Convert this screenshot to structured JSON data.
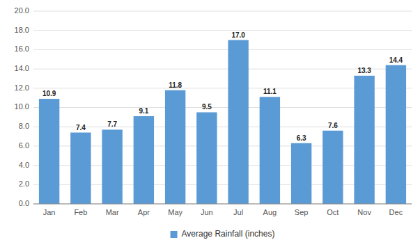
{
  "chart_data": {
    "type": "bar",
    "categories": [
      "Jan",
      "Feb",
      "Mar",
      "Apr",
      "May",
      "Jun",
      "Jul",
      "Aug",
      "Sep",
      "Oct",
      "Nov",
      "Dec"
    ],
    "series": [
      {
        "name": "Average Rainfall (inches)",
        "color": "#5b9bd5",
        "values": [
          10.9,
          7.4,
          7.7,
          9.1,
          11.8,
          9.5,
          17.0,
          11.1,
          6.3,
          7.6,
          13.3,
          14.4
        ],
        "value_labels": [
          "10.9",
          "7.4",
          "7.7",
          "9.1",
          "11.8",
          "9.5",
          "17.0",
          "11.1",
          "6.3",
          "7.6",
          "13.3",
          "14.4"
        ]
      }
    ],
    "ylim": [
      0,
      20.0
    ],
    "yticks": [
      {
        "value": 0.0,
        "label": "0.0"
      },
      {
        "value": 2.0,
        "label": "2.0"
      },
      {
        "value": 4.0,
        "label": "4.0"
      },
      {
        "value": 6.0,
        "label": "6.0"
      },
      {
        "value": 8.0,
        "label": "8.0"
      },
      {
        "value": 10.0,
        "label": "10.0"
      },
      {
        "value": 12.0,
        "label": "12.0"
      },
      {
        "value": 14.0,
        "label": "14.0"
      },
      {
        "value": 16.0,
        "label": "16.0"
      },
      {
        "value": 18.0,
        "label": "18.0"
      },
      {
        "value": 20.0,
        "label": "20.0"
      }
    ],
    "grid": true,
    "legend": "bottom",
    "data_labels": true
  }
}
